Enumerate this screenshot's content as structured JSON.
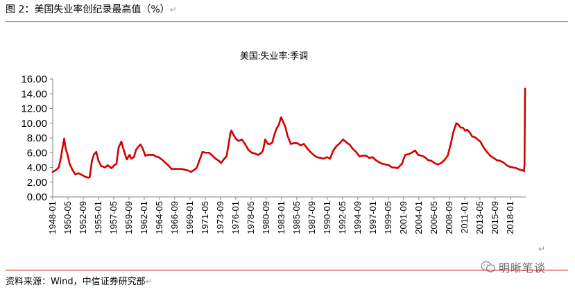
{
  "header": {
    "title": "图 2：美国失业率创纪录最高值（%）",
    "return_mark": "↵"
  },
  "footer": {
    "source": "资料来源：Wind，中信证券研究部",
    "return_mark": "↵"
  },
  "watermark": {
    "text": "明晰笔谈",
    "icon": "wechat-icon"
  },
  "colors": {
    "line": "#d00000",
    "rule": "#c00000",
    "axis": "#808080"
  },
  "chart_data": {
    "type": "line",
    "title": "美国:失业率:季调",
    "xlabel": "",
    "ylabel": "",
    "ylim": [
      0,
      16
    ],
    "y_ticks": [
      "0.00",
      "2.00",
      "4.00",
      "6.00",
      "8.00",
      "10.00",
      "12.00",
      "14.00",
      "16.00"
    ],
    "x_ticks": [
      "1948-01",
      "1950-05",
      "1952-09",
      "1955-01",
      "1957-05",
      "1959-09",
      "1962-01",
      "1964-05",
      "1966-09",
      "1969-01",
      "1971-05",
      "1973-09",
      "1976-01",
      "1978-05",
      "1980-09",
      "1983-01",
      "1985-05",
      "1987-09",
      "1990-01",
      "1992-05",
      "1994-09",
      "1997-01",
      "1999-05",
      "2001-09",
      "2004-01",
      "2006-05",
      "2008-09",
      "2011-01",
      "2013-05",
      "2015-09",
      "2018-01"
    ],
    "legend": "none",
    "grid": false,
    "series": [
      {
        "x": [
          "1948-01",
          "1948-06",
          "1948-12",
          "1949-04",
          "1949-07",
          "1949-10",
          "1950-01",
          "1950-04",
          "1950-08",
          "1951-01",
          "1951-06",
          "1952-01",
          "1952-06",
          "1952-11",
          "1953-06",
          "1953-09",
          "1954-01",
          "1954-05",
          "1954-09",
          "1955-01",
          "1955-06",
          "1956-01",
          "1956-06",
          "1957-01",
          "1957-06",
          "1957-10",
          "1958-02",
          "1958-07",
          "1958-12",
          "1959-05",
          "1959-10",
          "1960-01",
          "1960-06",
          "1960-10",
          "1961-03",
          "1961-06",
          "1961-10",
          "1962-03",
          "1962-08",
          "1963-01",
          "1963-06",
          "1963-10",
          "1964-03",
          "1964-09",
          "1965-03",
          "1965-09",
          "1966-03",
          "1966-09",
          "1967-03",
          "1967-09",
          "1968-03",
          "1968-09",
          "1969-03",
          "1969-09",
          "1970-01",
          "1970-06",
          "1970-12",
          "1971-06",
          "1971-12",
          "1972-06",
          "1972-12",
          "1973-06",
          "1973-10",
          "1974-03",
          "1974-08",
          "1974-12",
          "1975-03",
          "1975-05",
          "1975-09",
          "1976-01",
          "1976-06",
          "1976-12",
          "1977-06",
          "1977-12",
          "1978-06",
          "1978-12",
          "1979-06",
          "1979-12",
          "1980-03",
          "1980-07",
          "1980-12",
          "1981-04",
          "1981-08",
          "1981-12",
          "1982-04",
          "1982-08",
          "1982-12",
          "1983-04",
          "1983-08",
          "1983-12",
          "1984-06",
          "1984-12",
          "1985-06",
          "1985-12",
          "1986-06",
          "1986-12",
          "1987-06",
          "1987-12",
          "1988-06",
          "1988-12",
          "1989-06",
          "1989-12",
          "1990-06",
          "1990-12",
          "1991-06",
          "1991-12",
          "1992-06",
          "1992-12",
          "1993-06",
          "1993-12",
          "1994-06",
          "1994-12",
          "1995-06",
          "1995-12",
          "1996-06",
          "1996-12",
          "1997-06",
          "1997-12",
          "1998-06",
          "1998-12",
          "1999-06",
          "1999-12",
          "2000-04",
          "2000-10",
          "2001-06",
          "2001-12",
          "2002-06",
          "2002-12",
          "2003-06",
          "2003-12",
          "2004-06",
          "2004-12",
          "2005-06",
          "2005-12",
          "2006-06",
          "2006-12",
          "2007-06",
          "2007-12",
          "2008-06",
          "2008-12",
          "2009-04",
          "2009-08",
          "2009-10",
          "2010-02",
          "2010-06",
          "2010-10",
          "2011-02",
          "2011-06",
          "2011-10",
          "2012-03",
          "2012-08",
          "2013-01",
          "2013-06",
          "2013-12",
          "2014-06",
          "2014-12",
          "2015-06",
          "2015-12",
          "2016-06",
          "2016-12",
          "2017-06",
          "2017-12",
          "2018-06",
          "2018-12",
          "2019-06",
          "2019-12",
          "2020-02",
          "2020-03",
          "2020-04"
        ],
        "y": [
          3.4,
          3.6,
          4.0,
          5.3,
          6.7,
          7.9,
          6.5,
          5.8,
          4.5,
          3.7,
          3.1,
          3.2,
          3.0,
          2.8,
          2.6,
          2.7,
          4.9,
          5.8,
          6.1,
          4.9,
          4.2,
          4.0,
          4.3,
          3.9,
          4.3,
          4.5,
          6.7,
          7.5,
          6.2,
          5.1,
          5.7,
          5.2,
          5.4,
          6.4,
          6.9,
          7.1,
          6.6,
          5.6,
          5.7,
          5.7,
          5.7,
          5.5,
          5.4,
          5.1,
          4.7,
          4.3,
          3.8,
          3.8,
          3.8,
          3.8,
          3.7,
          3.6,
          3.4,
          3.7,
          3.9,
          4.9,
          6.1,
          6.0,
          6.0,
          5.6,
          5.2,
          4.9,
          4.6,
          5.1,
          5.5,
          7.2,
          8.6,
          9.0,
          8.4,
          7.9,
          7.6,
          7.8,
          7.2,
          6.4,
          6.0,
          5.9,
          5.7,
          6.0,
          6.3,
          7.8,
          7.2,
          7.2,
          7.4,
          8.5,
          9.3,
          9.8,
          10.8,
          10.2,
          9.5,
          8.3,
          7.2,
          7.3,
          7.3,
          7.0,
          7.2,
          6.6,
          6.1,
          5.7,
          5.4,
          5.3,
          5.2,
          5.4,
          5.2,
          6.3,
          6.9,
          7.3,
          7.8,
          7.4,
          7.1,
          6.5,
          6.1,
          5.5,
          5.6,
          5.6,
          5.3,
          5.4,
          5.0,
          4.7,
          4.5,
          4.4,
          4.3,
          4.0,
          4.0,
          3.9,
          4.5,
          5.7,
          5.8,
          6.0,
          6.3,
          5.7,
          5.6,
          5.4,
          5.0,
          4.9,
          4.6,
          4.4,
          4.6,
          5.0,
          5.6,
          7.3,
          8.7,
          9.6,
          10.0,
          9.8,
          9.4,
          9.4,
          9.0,
          9.1,
          8.8,
          8.2,
          8.1,
          7.8,
          7.5,
          6.7,
          6.1,
          5.6,
          5.3,
          5.0,
          4.9,
          4.7,
          4.3,
          4.1,
          4.0,
          3.9,
          3.7,
          3.6,
          3.5,
          4.4,
          14.7
        ]
      }
    ]
  }
}
